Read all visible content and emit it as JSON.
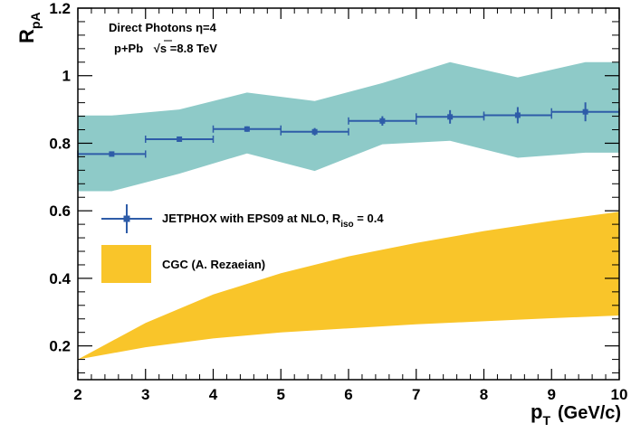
{
  "chart_data": {
    "type": "scatter",
    "annotations": {
      "line1": "Direct Photons η=4",
      "line2_prefix": "p+Pb",
      "line2_sqrt": "√s",
      "line2_value": "=8.8 TeV"
    },
    "xlabel": {
      "main": "p",
      "sub": "T",
      "unit": "(GeV/c)"
    },
    "ylabel": {
      "main": "R",
      "sub": "pA"
    },
    "xlim": [
      2,
      10
    ],
    "ylim": [
      0.1,
      1.2
    ],
    "x_ticks": [
      "2",
      "3",
      "4",
      "5",
      "6",
      "7",
      "8",
      "9",
      "10"
    ],
    "y_ticks": [
      "0.2",
      "0.4",
      "0.6",
      "0.8",
      "1",
      "1.2"
    ],
    "series": [
      {
        "name": "JETPHOX with EPS09 at NLO, R",
        "name_sub": "iso",
        "name_suffix": " = 0.4",
        "color": "#2e5ca8",
        "band_color": "#8ecac8",
        "points": [
          {
            "x": 2.5,
            "y": 0.768,
            "xerr": 0.5,
            "yerr": 0.006
          },
          {
            "x": 3.5,
            "y": 0.812,
            "xerr": 0.5,
            "yerr": 0.006
          },
          {
            "x": 4.5,
            "y": 0.842,
            "xerr": 0.5,
            "yerr": 0.008
          },
          {
            "x": 5.5,
            "y": 0.834,
            "xerr": 0.5,
            "yerr": 0.011
          },
          {
            "x": 6.5,
            "y": 0.866,
            "xerr": 0.5,
            "yerr": 0.014
          },
          {
            "x": 7.5,
            "y": 0.878,
            "xerr": 0.5,
            "yerr": 0.02
          },
          {
            "x": 8.5,
            "y": 0.883,
            "xerr": 0.5,
            "yerr": 0.024
          },
          {
            "x": 9.5,
            "y": 0.893,
            "xerr": 0.5,
            "yerr": 0.028
          }
        ],
        "band": {
          "x": [
            2.0,
            2.5,
            3.5,
            4.5,
            5.5,
            6.5,
            7.5,
            8.5,
            9.5,
            10.0
          ],
          "upper": [
            0.882,
            0.882,
            0.9,
            0.95,
            0.925,
            0.978,
            1.04,
            0.995,
            1.04,
            1.04
          ],
          "lower": [
            0.658,
            0.658,
            0.71,
            0.77,
            0.718,
            0.797,
            0.807,
            0.757,
            0.772,
            0.772
          ]
        }
      },
      {
        "name": "CGC (A. Rezaeian)",
        "color": "#f9c52a",
        "band": {
          "x": [
            2.0,
            3.0,
            4.0,
            5.0,
            6.0,
            7.0,
            8.0,
            9.0,
            10.0
          ],
          "upper": [
            0.16,
            0.268,
            0.352,
            0.415,
            0.465,
            0.505,
            0.54,
            0.57,
            0.597
          ],
          "lower": [
            0.16,
            0.196,
            0.222,
            0.24,
            0.252,
            0.264,
            0.273,
            0.282,
            0.29
          ]
        }
      }
    ],
    "legend_position": "middle-left"
  }
}
